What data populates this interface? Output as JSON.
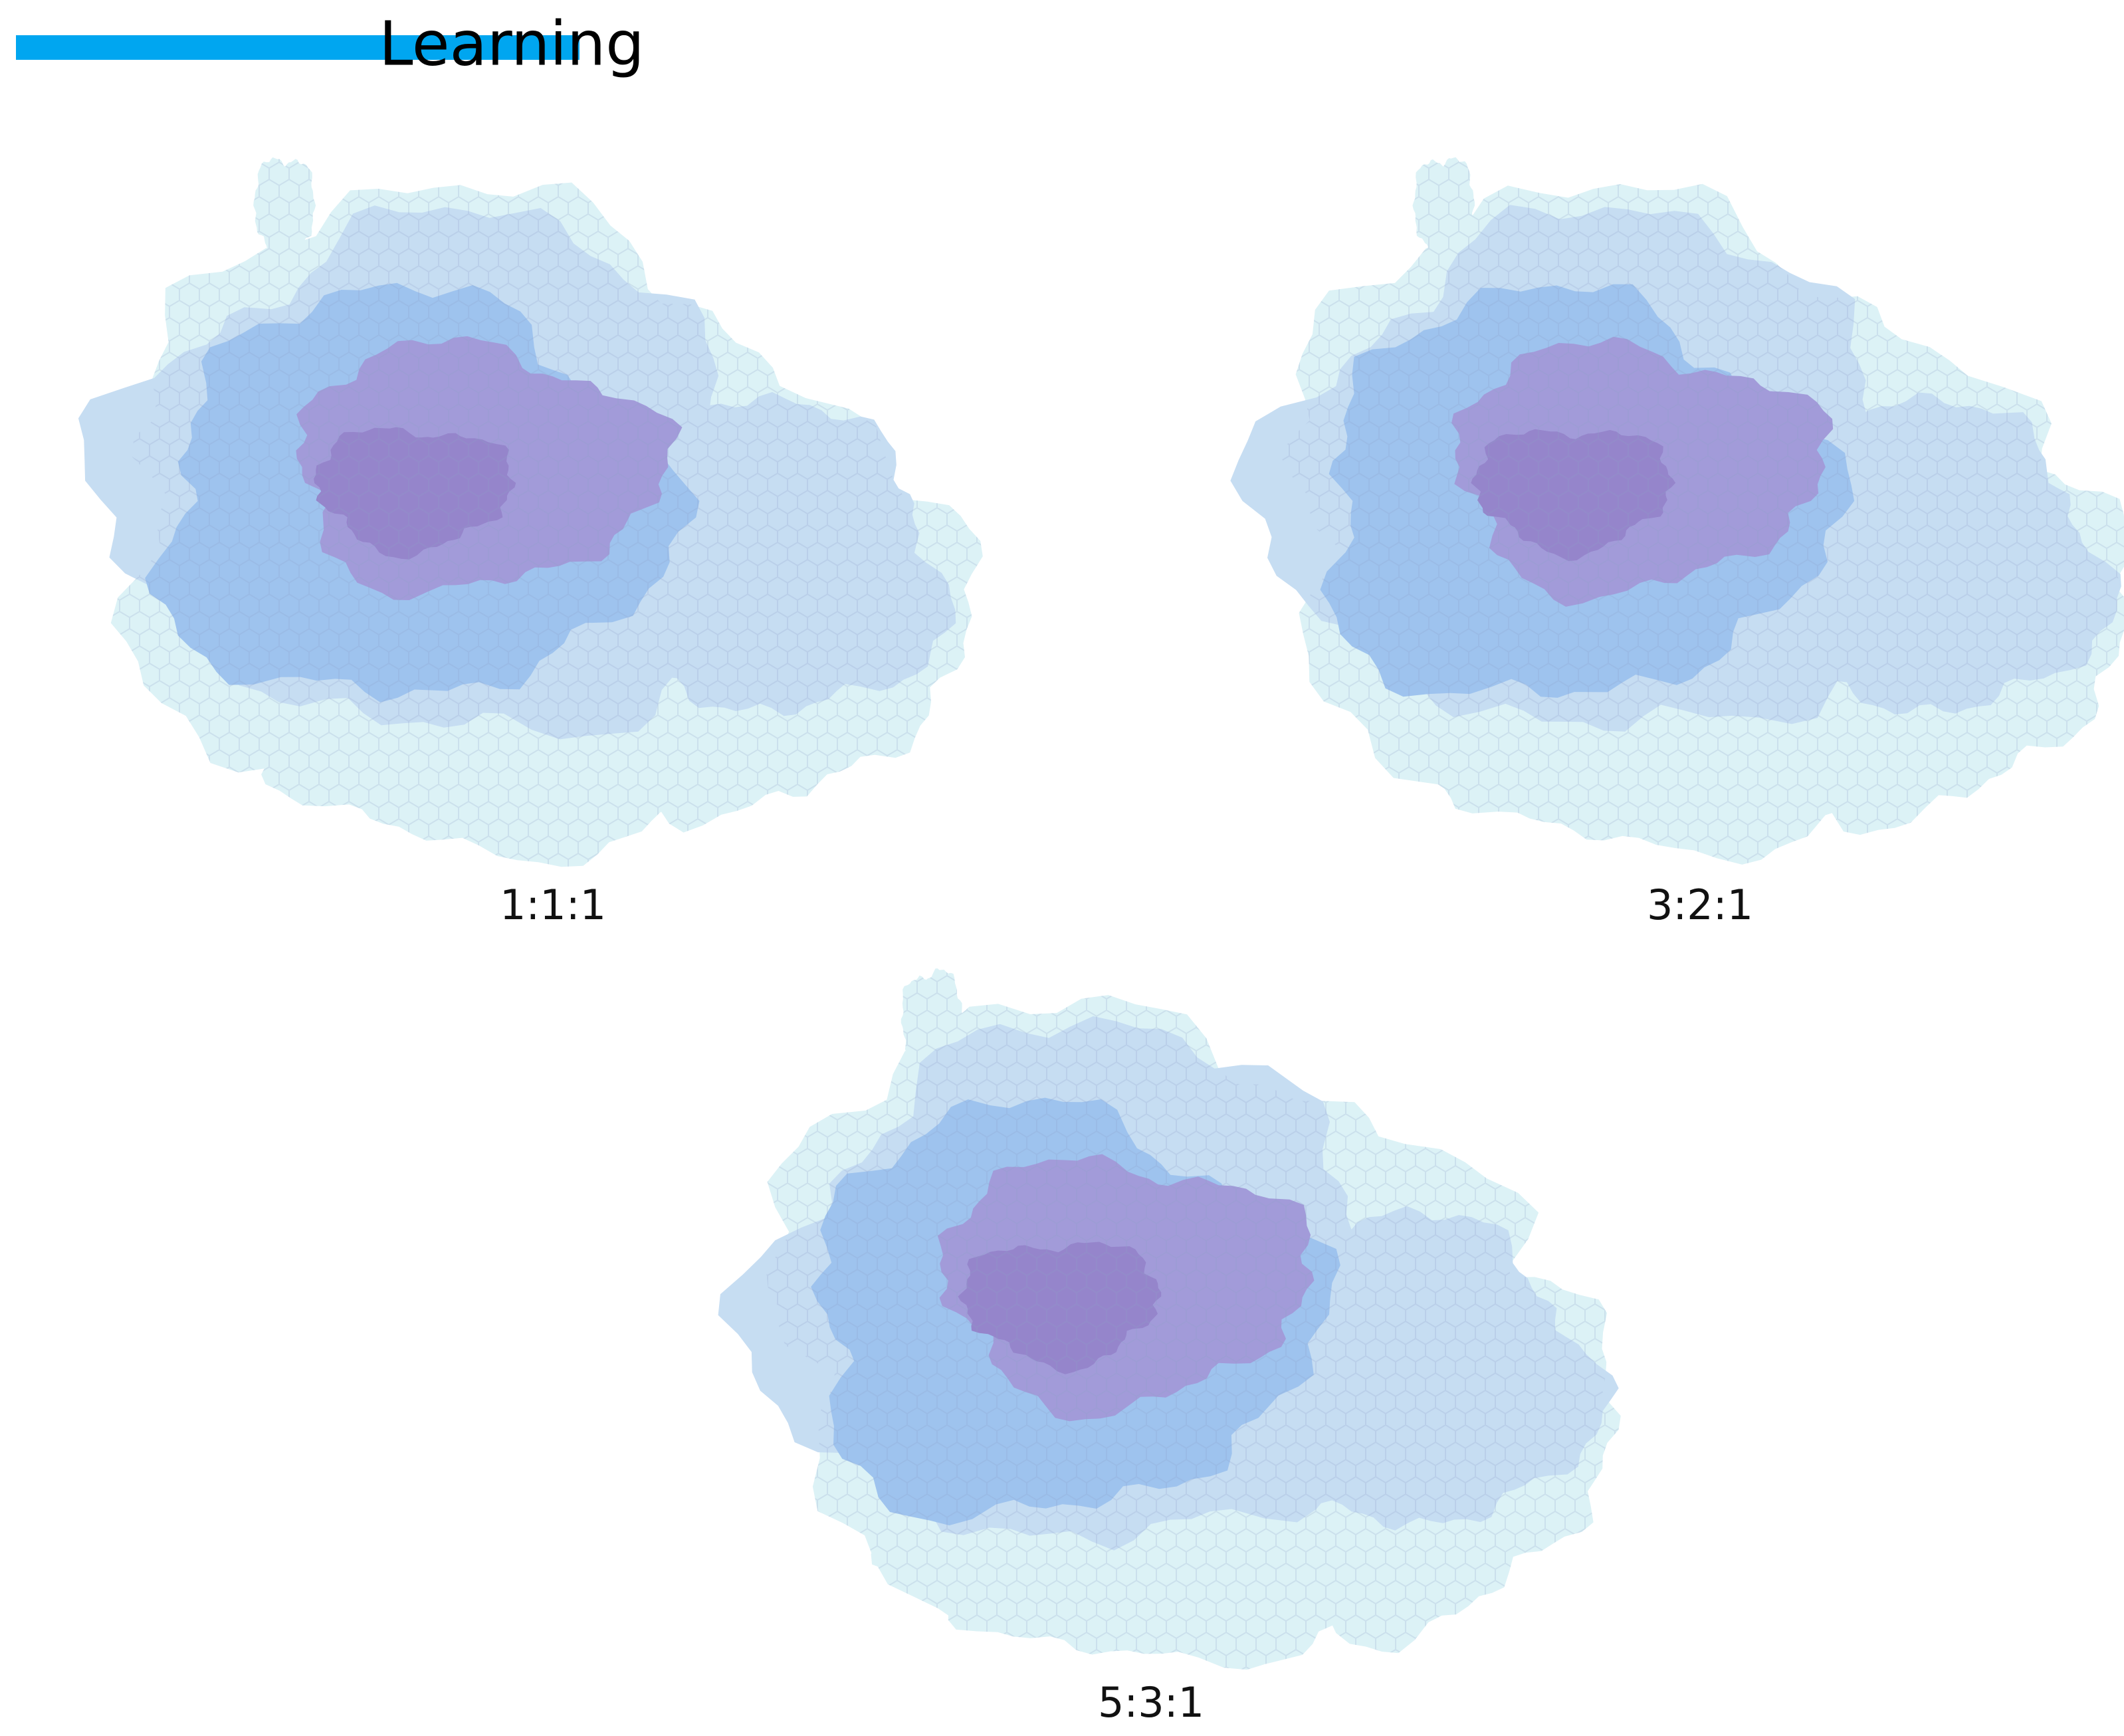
{
  "header": {
    "title": "Learning"
  },
  "panels": [
    {
      "label": "1:1:1"
    },
    {
      "label": "3:2:1"
    },
    {
      "label": "5:3:1"
    }
  ]
}
